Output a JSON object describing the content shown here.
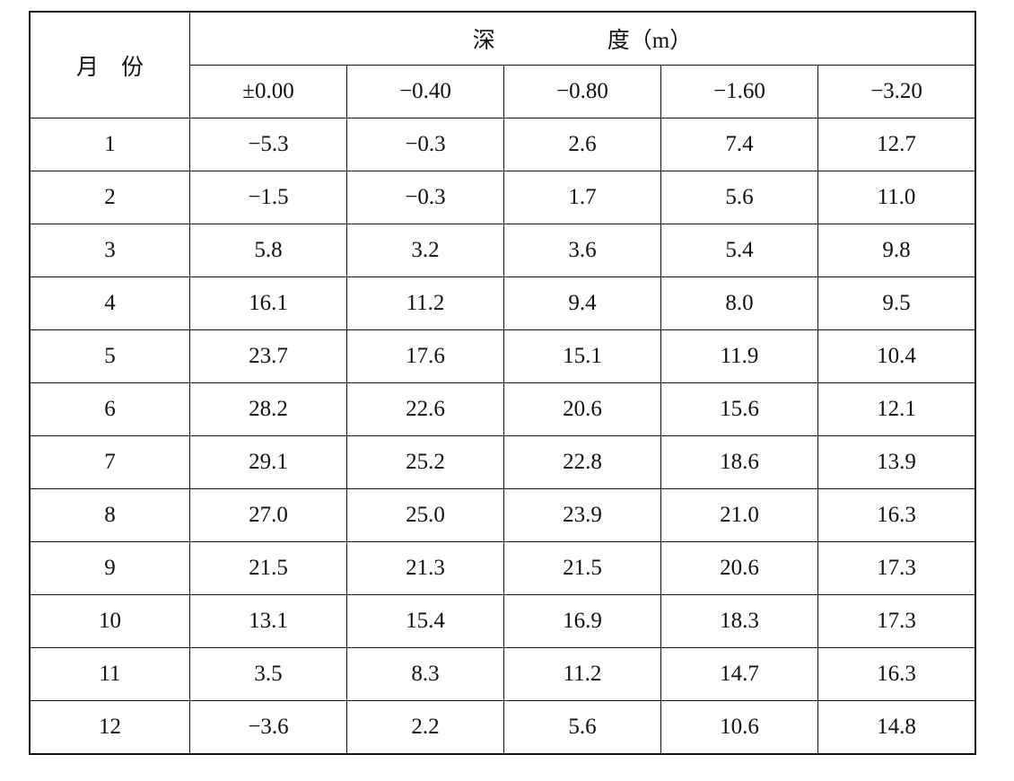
{
  "table": {
    "month_header": "月　份",
    "depth_header": "深　　　　　度（m）",
    "columns": [
      "±0.00",
      "−0.40",
      "−0.80",
      "−1.60",
      "−3.20"
    ],
    "rows": [
      [
        "1",
        "−5.3",
        "−0.3",
        "2.6",
        "7.4",
        "12.7"
      ],
      [
        "2",
        "−1.5",
        "−0.3",
        "1.7",
        "5.6",
        "11.0"
      ],
      [
        "3",
        "5.8",
        "3.2",
        "3.6",
        "5.4",
        "9.8"
      ],
      [
        "4",
        "16.1",
        "11.2",
        "9.4",
        "8.0",
        "9.5"
      ],
      [
        "5",
        "23.7",
        "17.6",
        "15.1",
        "11.9",
        "10.4"
      ],
      [
        "6",
        "28.2",
        "22.6",
        "20.6",
        "15.6",
        "12.1"
      ],
      [
        "7",
        "29.1",
        "25.2",
        "22.8",
        "18.6",
        "13.9"
      ],
      [
        "8",
        "27.0",
        "25.0",
        "23.9",
        "21.0",
        "16.3"
      ],
      [
        "9",
        "21.5",
        "21.3",
        "21.5",
        "20.6",
        "17.3"
      ],
      [
        "10",
        "13.1",
        "15.4",
        "16.9",
        "18.3",
        "17.3"
      ],
      [
        "11",
        "3.5",
        "8.3",
        "11.2",
        "14.7",
        "16.3"
      ],
      [
        "12",
        "−3.6",
        "2.2",
        "5.6",
        "10.6",
        "14.8"
      ]
    ]
  }
}
